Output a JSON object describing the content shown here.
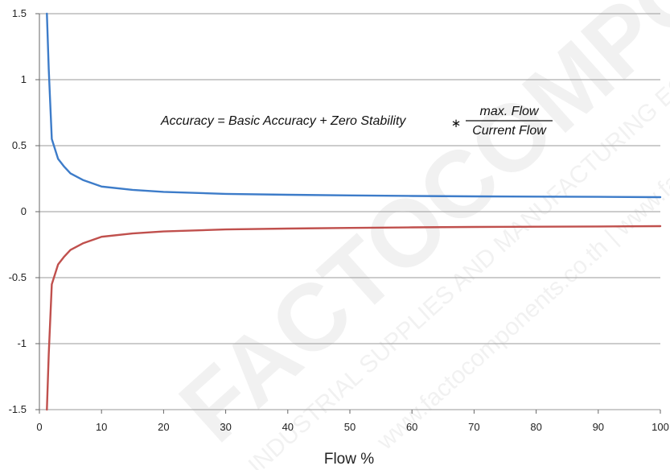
{
  "chart_data": {
    "type": "line",
    "title": "",
    "xlabel": "Flow %",
    "ylabel": "",
    "xlim": [
      0,
      100
    ],
    "ylim": [
      -1.5,
      1.5
    ],
    "xticks": [
      0,
      10,
      20,
      30,
      40,
      50,
      60,
      70,
      80,
      90,
      100
    ],
    "yticks": [
      1.5,
      1,
      0.5,
      0,
      -0.5,
      -1,
      -1.5
    ],
    "ytick_labels": [
      "1.5",
      "1",
      "0.5",
      "0",
      "-0.5",
      "-1",
      "-1.5"
    ],
    "grid": "horizontal",
    "legend": "none",
    "series": [
      {
        "color": "#3d7cc9",
        "x": [
          1.2,
          1.5,
          2,
          3,
          4,
          5,
          7,
          10,
          15,
          20,
          30,
          40,
          50,
          60,
          70,
          80,
          90,
          100
        ],
        "y": [
          1.5,
          1.08,
          0.55,
          0.4,
          0.34,
          0.29,
          0.24,
          0.19,
          0.165,
          0.15,
          0.135,
          0.128,
          0.123,
          0.119,
          0.116,
          0.114,
          0.112,
          0.11
        ]
      },
      {
        "color": "#c0504d",
        "x": [
          1.2,
          1.5,
          2,
          3,
          4,
          5,
          7,
          10,
          15,
          20,
          30,
          40,
          50,
          60,
          70,
          80,
          90,
          100
        ],
        "y": [
          -1.5,
          -1.08,
          -0.55,
          -0.4,
          -0.34,
          -0.29,
          -0.24,
          -0.19,
          -0.165,
          -0.15,
          -0.135,
          -0.128,
          -0.123,
          -0.119,
          -0.116,
          -0.114,
          -0.112,
          -0.11
        ]
      }
    ],
    "annotation": {
      "lhs": "Accuracy = Basic Accuracy + Zero Stability",
      "operator": "∗",
      "numerator": "max. Flow",
      "denominator": "Current Flow"
    }
  },
  "watermark": {
    "brand": "FACTOCOMPONENTS",
    "line1": "INDUSTRIAL SUPPLIES AND MANUFACTURING EQ",
    "line2": "www.factocomponents.co.th | www.factocom"
  }
}
